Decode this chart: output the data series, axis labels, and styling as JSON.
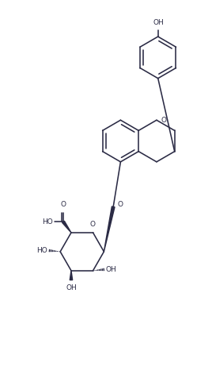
{
  "line_color": "#2b2b45",
  "bg_color": "#ffffff",
  "font_size": 6.5,
  "line_width": 1.15,
  "figsize": [
    2.68,
    4.76
  ],
  "dpi": 100,
  "xlim": [
    0,
    10
  ],
  "ylim": [
    0,
    18
  ]
}
